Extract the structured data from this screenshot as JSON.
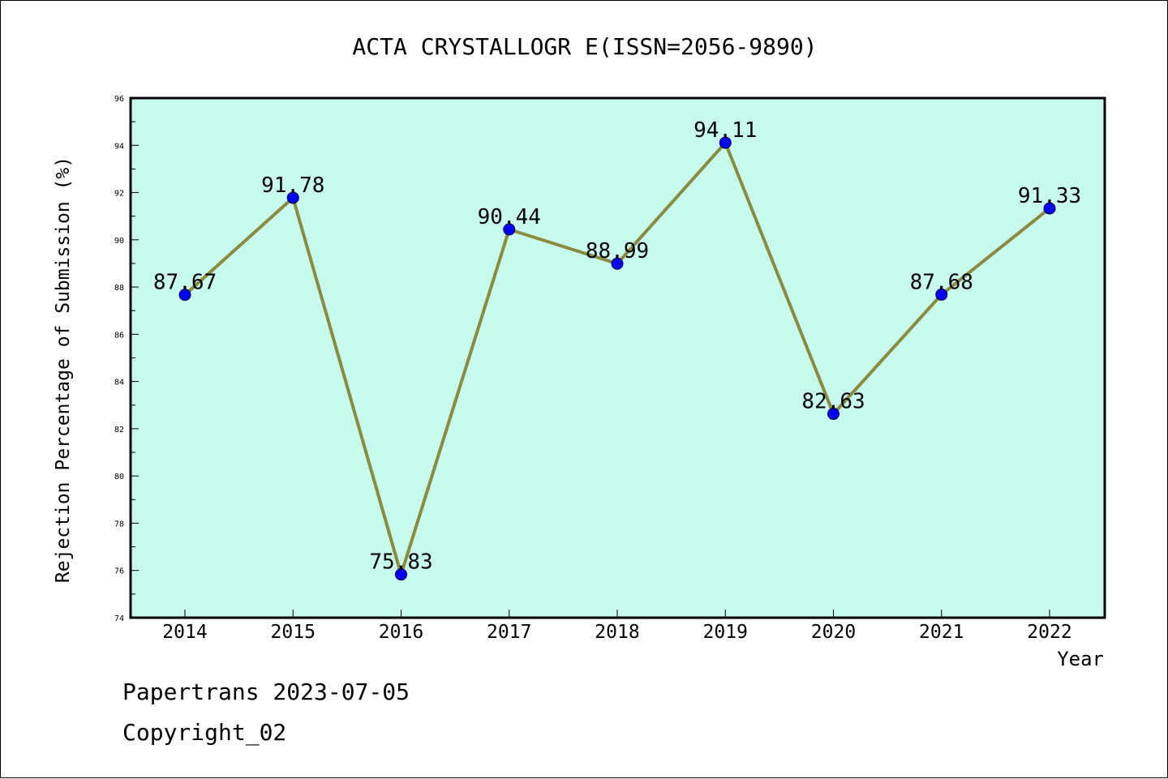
{
  "chart_data": {
    "type": "line",
    "title": "ACTA CRYSTALLOGR E(ISSN=2056-9890)",
    "xlabel": "Year",
    "ylabel": "Rejection Percentage of Submission (%)",
    "categories": [
      "2014",
      "2015",
      "2016",
      "2017",
      "2018",
      "2019",
      "2020",
      "2021",
      "2022"
    ],
    "series": [
      {
        "values": [
          87.67,
          91.78,
          75.83,
          90.44,
          88.99,
          94.11,
          82.63,
          87.68,
          91.33
        ],
        "labels": [
          "87.67",
          "91.78",
          "75.83",
          "90.44",
          "88.99",
          "94.11",
          "82.63",
          "87.68",
          "91.33"
        ]
      }
    ],
    "ylim": [
      74,
      96
    ],
    "yticks": [
      "74",
      "76",
      "78",
      "80",
      "82",
      "84",
      "86",
      "88",
      "90",
      "92",
      "94",
      "96"
    ],
    "grid": false,
    "colors": {
      "plot_background": "#c7fbee",
      "line": "#8c8a3c",
      "marker": "#0000ff"
    }
  },
  "footer": {
    "line1": "Papertrans 2023-07-05",
    "line2": "Copyright_02"
  }
}
